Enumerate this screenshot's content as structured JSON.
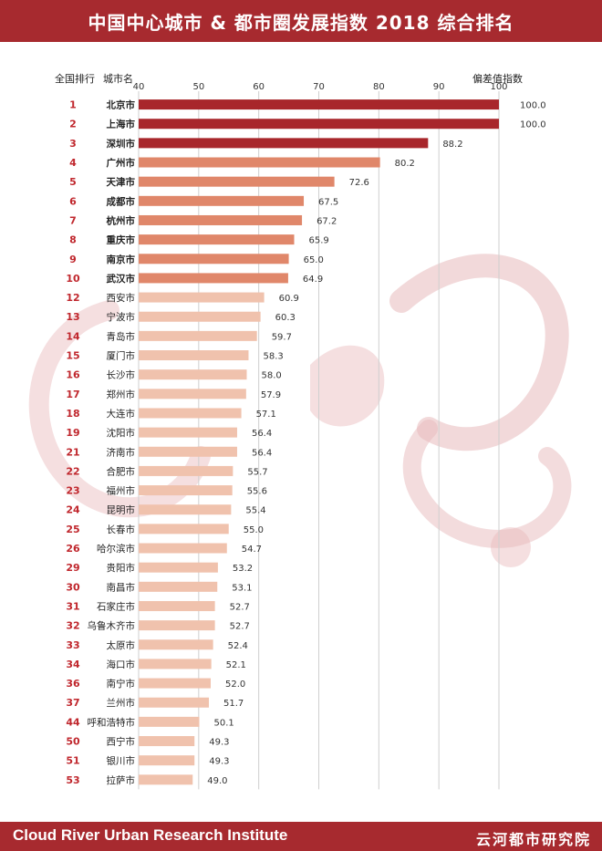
{
  "header": {
    "title": "中国中心城市 & 都市圈发展指数 2018 综合排名"
  },
  "columns": {
    "rank_label": "全国排行",
    "city_label": "城市名",
    "index_label": "偏差值指数"
  },
  "footer": {
    "org_en": "Cloud River Urban Research Institute",
    "org_cn": "云河都市研究院"
  },
  "colors": {
    "brand": "#a72a2f",
    "bar_top3": "#a8262b",
    "bar_4_10": "#e0876a",
    "bar_rest": "#f0c2ad",
    "rank_text": "#c0272d",
    "dragon": "#e8b9bb"
  },
  "chart_data": {
    "type": "bar",
    "orientation": "horizontal",
    "title": "中国中心城市 & 都市圈发展指数 2018 综合排名",
    "xlabel": "偏差值指数",
    "xlim": [
      40,
      100
    ],
    "xticks": [
      40,
      50,
      60,
      70,
      80,
      90,
      100
    ],
    "grid": true,
    "ranks": [
      "1",
      "2",
      "3",
      "4",
      "5",
      "6",
      "7",
      "8",
      "9",
      "10",
      "12",
      "13",
      "14",
      "15",
      "16",
      "17",
      "18",
      "19",
      "21",
      "22",
      "23",
      "24",
      "25",
      "26",
      "29",
      "30",
      "31",
      "32",
      "33",
      "34",
      "36",
      "37",
      "44",
      "50",
      "51",
      "53"
    ],
    "categories": [
      "北京市",
      "上海市",
      "深圳市",
      "广州市",
      "天津市",
      "成都市",
      "杭州市",
      "重庆市",
      "南京市",
      "武汉市",
      "西安市",
      "宁波市",
      "青岛市",
      "厦门市",
      "长沙市",
      "郑州市",
      "大连市",
      "沈阳市",
      "济南市",
      "合肥市",
      "福州市",
      "昆明市",
      "长春市",
      "哈尔滨市",
      "贵阳市",
      "南昌市",
      "石家庄市",
      "乌鲁木齐市",
      "太原市",
      "海口市",
      "南宁市",
      "兰州市",
      "呼和浩特市",
      "西宁市",
      "银川市",
      "拉萨市"
    ],
    "values": [
      100.0,
      100.0,
      88.2,
      80.2,
      72.6,
      67.5,
      67.2,
      65.9,
      65.0,
      64.9,
      60.9,
      60.3,
      59.7,
      58.3,
      58.0,
      57.9,
      57.1,
      56.4,
      56.4,
      55.7,
      55.6,
      55.4,
      55.0,
      54.7,
      53.2,
      53.1,
      52.7,
      52.7,
      52.4,
      52.1,
      52.0,
      51.7,
      50.1,
      49.3,
      49.3,
      49.0
    ],
    "value_labels": [
      "100.0",
      "100.0",
      "88.2",
      "80.2",
      "72.6",
      "67.5",
      "67.2",
      "65.9",
      "65.0",
      "64.9",
      "60.9",
      "60.3",
      "59.7",
      "58.3",
      "58.0",
      "57.9",
      "57.1",
      "56.4",
      "56.4",
      "55.7",
      "55.6",
      "55.4",
      "55.0",
      "54.7",
      "53.2",
      "53.1",
      "52.7",
      "52.7",
      "52.4",
      "52.1",
      "52.0",
      "51.7",
      "50.1",
      "49.3",
      "49.3",
      "49.0"
    ]
  }
}
